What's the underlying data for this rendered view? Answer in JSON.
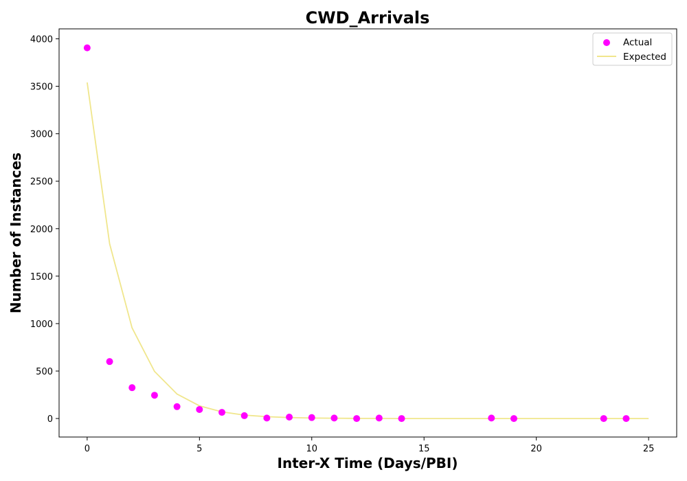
{
  "chart_data": {
    "type": "scatter",
    "title": "CWD_Arrivals",
    "xlabel": "Inter-X Time (Days/PBI)",
    "ylabel": "Number of Instances",
    "xlim": [
      -1.25,
      26.25
    ],
    "ylim": [
      -195,
      4105
    ],
    "xticks": [
      0,
      5,
      10,
      15,
      20,
      25
    ],
    "yticks": [
      0,
      500,
      1000,
      1500,
      2000,
      2500,
      3000,
      3500,
      4000
    ],
    "grid": false,
    "legend_position": "top-right",
    "series": [
      {
        "name": "Actual",
        "kind": "scatter",
        "color": "#ff00ff",
        "x": [
          0,
          1,
          2,
          3,
          4,
          5,
          6,
          7,
          8,
          9,
          10,
          11,
          12,
          13,
          14,
          18,
          19,
          23,
          24
        ],
        "y": [
          3905,
          600,
          325,
          245,
          125,
          95,
          65,
          30,
          5,
          15,
          10,
          5,
          0,
          5,
          0,
          5,
          0,
          0,
          0
        ]
      },
      {
        "name": "Expected",
        "kind": "line",
        "color": "#f0e68c",
        "x": [
          0,
          1,
          2,
          3,
          4,
          5,
          6,
          7,
          8,
          9,
          10,
          11,
          12,
          13,
          14,
          15,
          16,
          17,
          18,
          19,
          20,
          21,
          22,
          23,
          24,
          25
        ],
        "y": [
          3540,
          1840,
          955,
          496,
          258,
          134,
          70,
          36,
          19,
          10,
          5,
          3,
          1,
          1,
          0,
          0,
          0,
          0,
          0,
          0,
          0,
          0,
          0,
          0,
          0,
          0
        ]
      }
    ]
  }
}
